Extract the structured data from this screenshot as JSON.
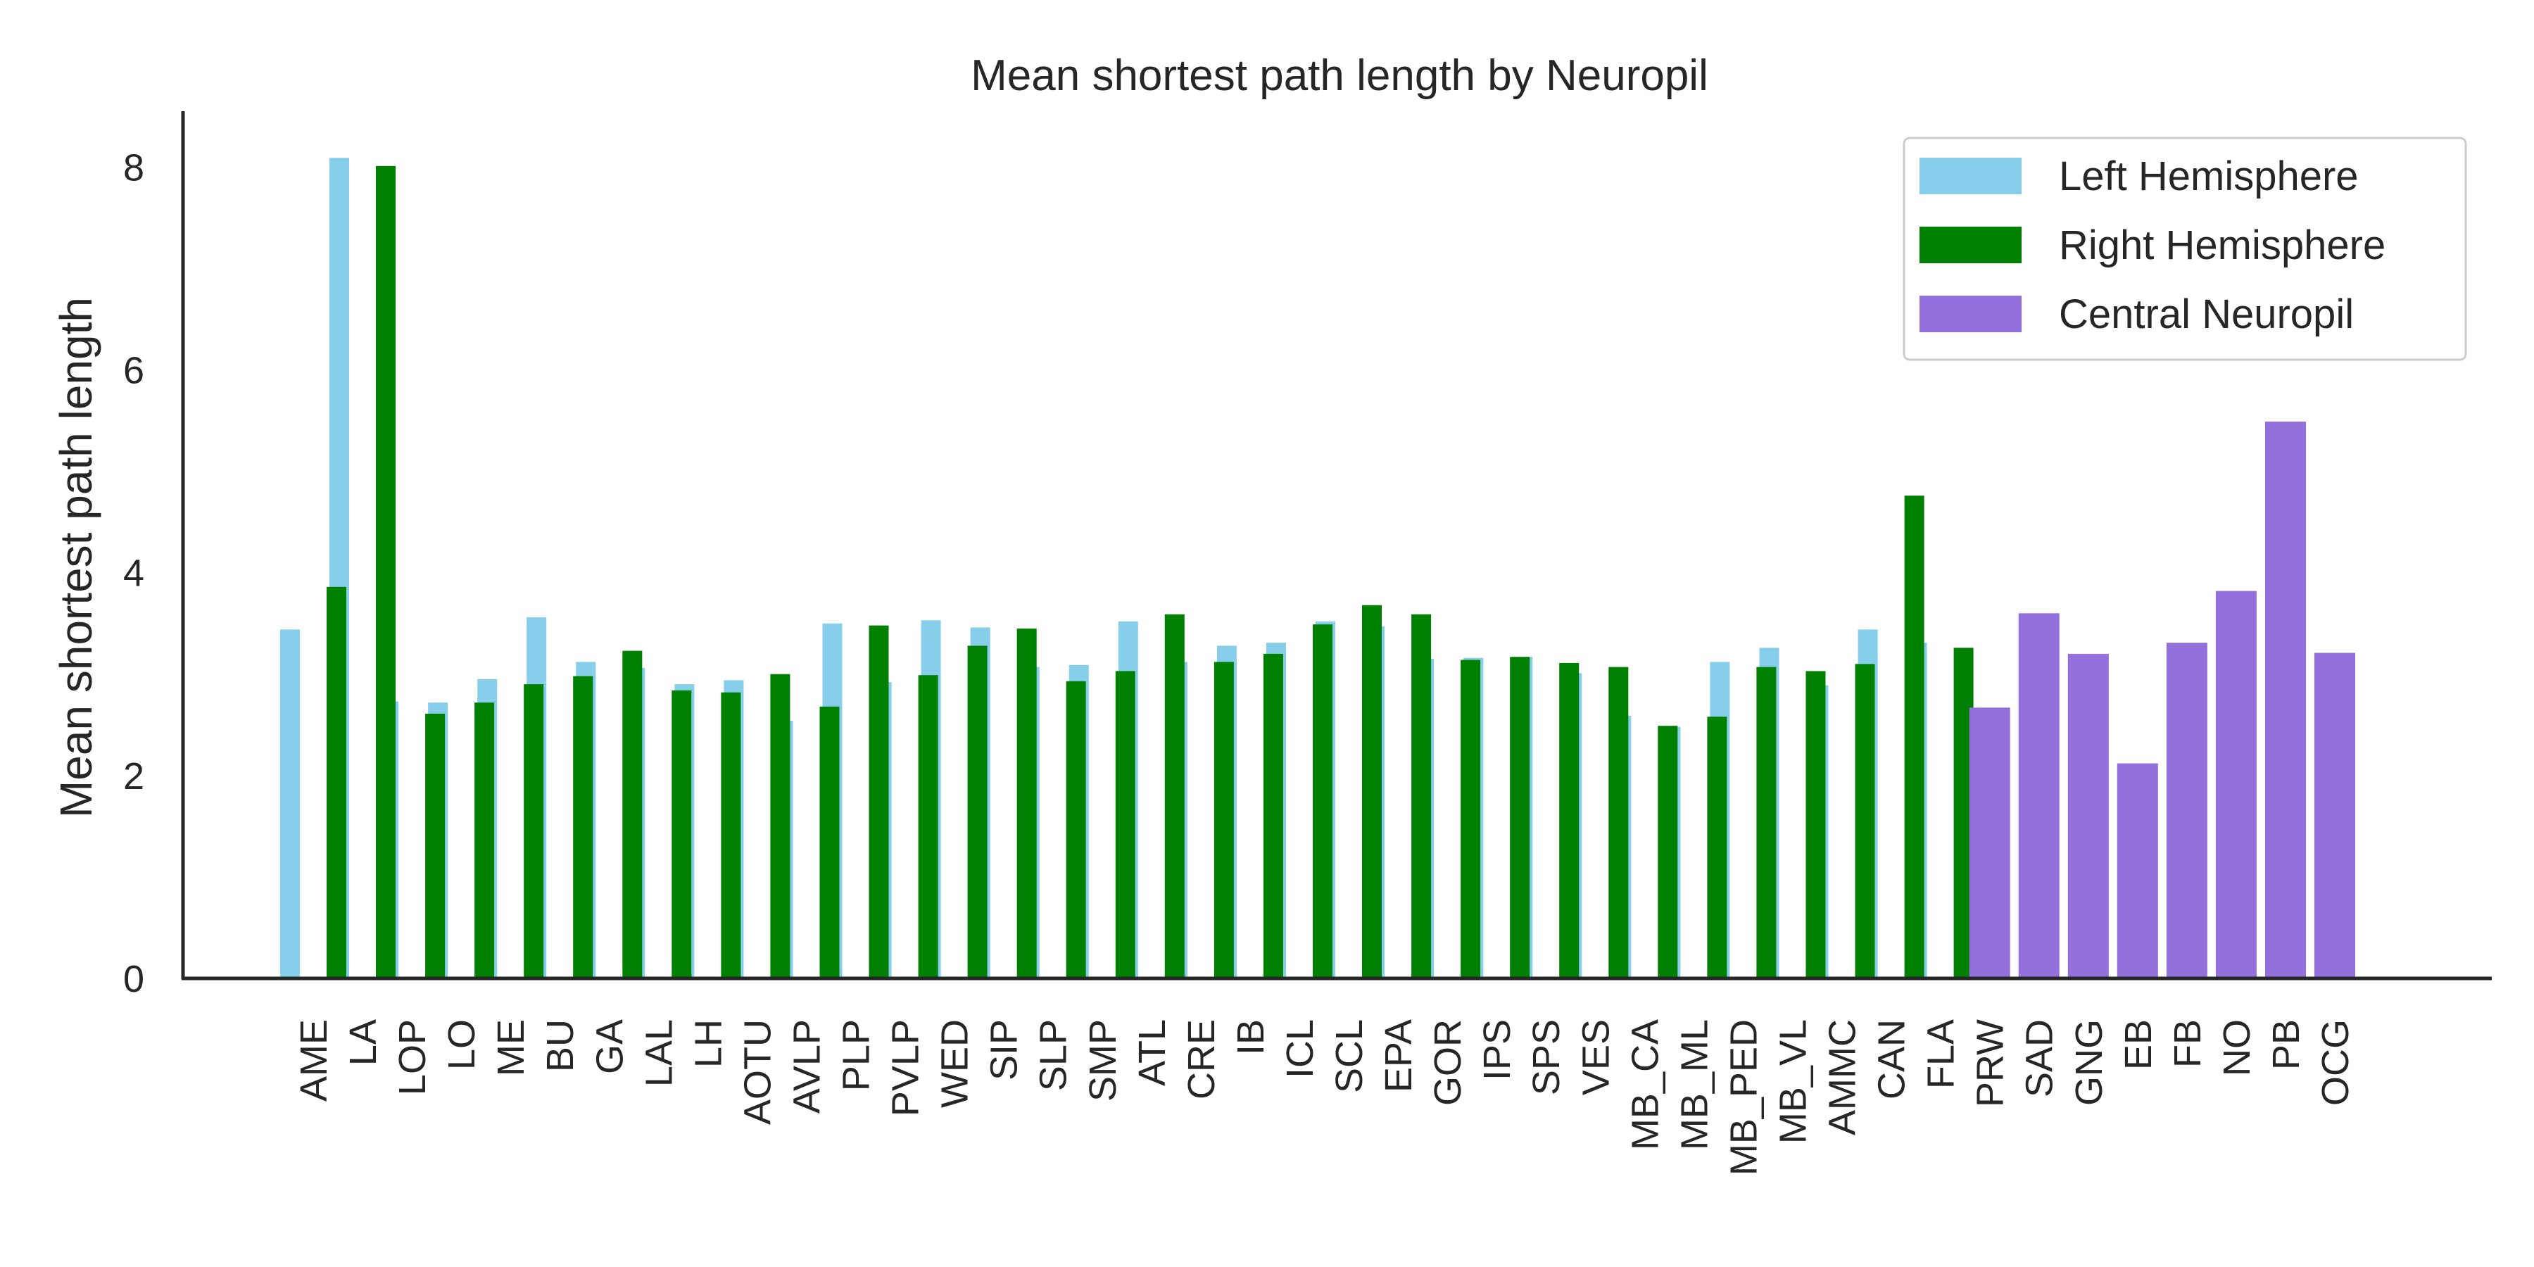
{
  "chart_data": {
    "type": "bar",
    "title": "Mean shortest path length by Neuropil",
    "xlabel": "",
    "ylabel": "Mean shortest path length",
    "ylim": [
      0,
      8.55
    ],
    "yticks": [
      0,
      2,
      4,
      6,
      8
    ],
    "grid": false,
    "legend_position": "top-right",
    "legend": [
      {
        "label": "Left Hemisphere",
        "color": "#87CEEB"
      },
      {
        "label": "Right Hemisphere",
        "color": "#008000"
      },
      {
        "label": "Central Neuropil",
        "color": "#9370DB"
      }
    ],
    "categories": [
      "AME",
      "LA",
      "LOP",
      "LO",
      "ME",
      "BU",
      "GA",
      "LAL",
      "LH",
      "AOTU",
      "AVLP",
      "PLP",
      "PVLP",
      "WED",
      "SIP",
      "SLP",
      "SMP",
      "ATL",
      "CRE",
      "IB",
      "ICL",
      "SCL",
      "EPA",
      "GOR",
      "IPS",
      "SPS",
      "VES",
      "MB_CA",
      "MB_ML",
      "MB_PED",
      "MB_VL",
      "AMMC",
      "CAN",
      "FLA",
      "PRW",
      "SAD",
      "GNG",
      "EB",
      "FB",
      "NO",
      "PB",
      "OCG"
    ],
    "series": [
      {
        "name": "Left Hemisphere",
        "color": "#87CEEB",
        "values": [
          3.44,
          8.09,
          2.73,
          2.72,
          2.95,
          3.56,
          3.12,
          3.06,
          2.9,
          2.94,
          2.54,
          3.5,
          2.92,
          3.53,
          3.46,
          3.07,
          3.09,
          3.52,
          3.12,
          3.28,
          3.31,
          3.52,
          3.47,
          3.15,
          3.16,
          3.17,
          3.01,
          2.59,
          2.48,
          3.12,
          3.26,
          2.89,
          3.44,
          3.31,
          null,
          null,
          null,
          null,
          null,
          null,
          null,
          null
        ]
      },
      {
        "name": "Right Hemisphere",
        "color": "#008000",
        "values": [
          3.86,
          8.01,
          2.61,
          2.72,
          2.9,
          2.98,
          3.23,
          2.84,
          2.82,
          3.0,
          2.68,
          3.48,
          2.99,
          3.28,
          3.45,
          2.93,
          3.03,
          3.59,
          3.12,
          3.2,
          3.49,
          3.68,
          3.59,
          3.14,
          3.17,
          3.11,
          3.07,
          2.49,
          2.58,
          3.07,
          3.03,
          3.1,
          4.76,
          3.26,
          null,
          null,
          null,
          null,
          null,
          null,
          null,
          null
        ]
      },
      {
        "name": "Central Neuropil",
        "color": "#9370DB",
        "values": [
          null,
          null,
          null,
          null,
          null,
          null,
          null,
          null,
          null,
          null,
          null,
          null,
          null,
          null,
          null,
          null,
          null,
          null,
          null,
          null,
          null,
          null,
          null,
          null,
          null,
          null,
          null,
          null,
          null,
          null,
          null,
          null,
          null,
          null,
          2.67,
          3.6,
          3.2,
          2.12,
          3.31,
          3.82,
          5.49,
          3.21
        ]
      }
    ]
  }
}
